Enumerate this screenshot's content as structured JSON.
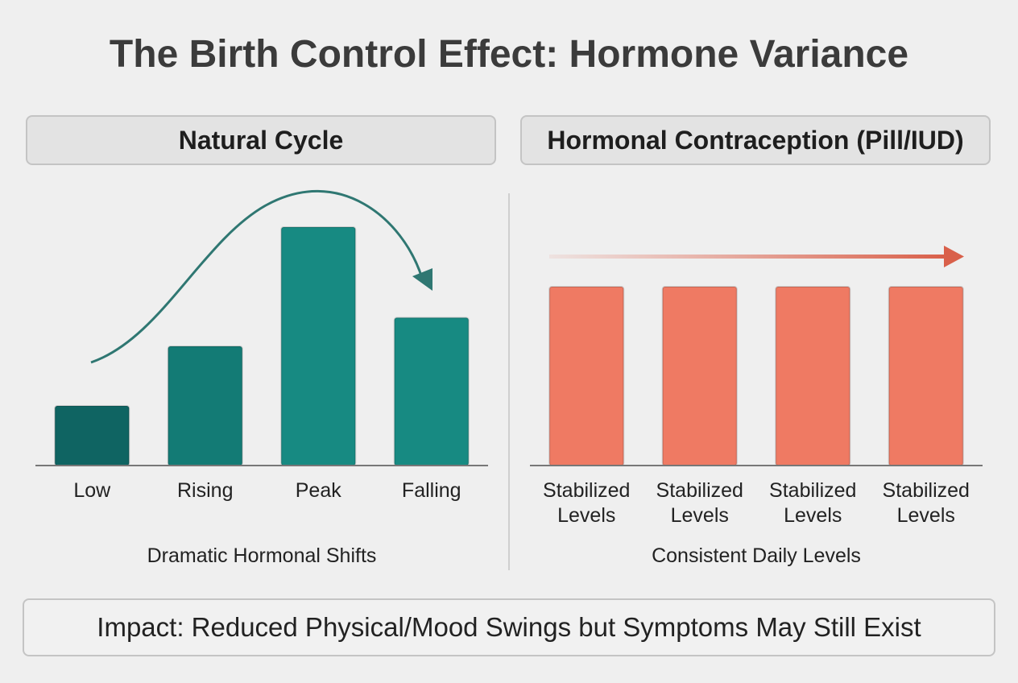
{
  "title": "The Birth Control Effect: Hormone Variance",
  "footer": "Impact: Reduced Physical/Mood Swings but Symptoms May Still Exist",
  "chart_data": [
    {
      "type": "bar",
      "title": "Natural Cycle",
      "caption": "Dramatic Hormonal Shifts",
      "categories": [
        "Low",
        "Rising",
        "Peak",
        "Falling"
      ],
      "values": [
        25,
        50,
        100,
        62
      ],
      "colors": [
        "#0f6462",
        "#137b75",
        "#178a82",
        "#178a82"
      ],
      "ylim": [
        0,
        100
      ]
    },
    {
      "type": "bar",
      "title": "Hormonal Contraception (Pill/IUD)",
      "caption": "Consistent Daily Levels",
      "categories": [
        "Stabilized Levels",
        "Stabilized Levels",
        "Stabilized Levels",
        "Stabilized Levels"
      ],
      "values": [
        75,
        75,
        75,
        75
      ],
      "colors": [
        "#ef7a63",
        "#ef7a63",
        "#ef7a63",
        "#ef7a63"
      ],
      "ylim": [
        0,
        100
      ]
    }
  ]
}
